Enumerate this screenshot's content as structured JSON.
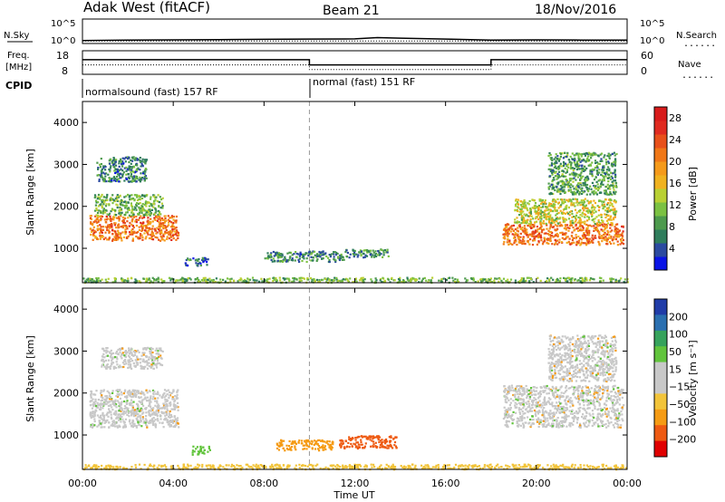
{
  "header": {
    "radar": "Adak West (fitACF)",
    "beam": "Beam 21",
    "date": "18/Nov/2016"
  },
  "panel_labels": {
    "nsky": "N.Sky",
    "nsearch": "N.Search",
    "freq": "Freq.",
    "freq_unit": "[MHz]",
    "nave": "Nave",
    "cpid": "CPID",
    "dotted": "......"
  },
  "cpid_segments": [
    {
      "label": "normalsound (fast) 157 RF",
      "start_hour": 0,
      "end_hour": 10
    },
    {
      "label": "normal (fast) 151 RF",
      "start_hour": 10,
      "end_hour": 24
    }
  ],
  "colors": {
    "power": [
      "#0a14e6",
      "#2b4aa0",
      "#2f7d5c",
      "#4d9a4d",
      "#7bc142",
      "#b9d033",
      "#f0b21f",
      "#f59a1a",
      "#f07717",
      "#e8501a",
      "#e02a20",
      "#d81b1b"
    ],
    "velocity": [
      "#e00000",
      "#ee5a12",
      "#f59b14",
      "#f2c43a",
      "#c8c8c8",
      "#c8c8c8",
      "#61c43c",
      "#36a35c",
      "#2a6fb0",
      "#203ca8"
    ]
  },
  "chart_data": [
    {
      "type": "line",
      "name": "noise-search panel",
      "y_labels_left": [
        "10^5",
        "10^0"
      ],
      "y_labels_right": [
        "10^5",
        "10^0"
      ],
      "x_range_hours": [
        0,
        24
      ],
      "description_series": [
        {
          "name": "N.Sky",
          "style": "solid",
          "points_hour_log": [
            [
              0,
              0.6
            ],
            [
              2,
              0.7
            ],
            [
              4,
              0.75
            ],
            [
              6,
              0.8
            ],
            [
              8,
              0.85
            ],
            [
              10,
              0.9
            ],
            [
              12,
              0.95
            ],
            [
              13,
              1.2
            ],
            [
              14,
              1.1
            ],
            [
              16,
              0.9
            ],
            [
              18,
              0.7
            ],
            [
              20,
              0.75
            ],
            [
              22,
              0.7
            ],
            [
              24,
              0.7
            ]
          ]
        },
        {
          "name": "N.Search",
          "style": "dotted",
          "points_hour_log": [
            [
              0,
              0.5
            ],
            [
              24,
              0.5
            ]
          ]
        }
      ]
    },
    {
      "type": "line",
      "name": "frequency-nave panel",
      "y_ticks_left": [
        8,
        18
      ],
      "y_ticks_right": [
        0,
        60
      ],
      "series": [
        {
          "name": "Freq.",
          "unit": "MHz",
          "style": "solid",
          "points_hour_value": [
            [
              0,
              14.2
            ],
            [
              10,
              14.2
            ],
            [
              10,
              12.0
            ],
            [
              18,
              12.0
            ],
            [
              18,
              14.2
            ],
            [
              24,
              14.2
            ]
          ]
        },
        {
          "name": "Nave",
          "style": "dotted",
          "points_hour_value": [
            [
              0,
              12
            ],
            [
              10,
              12
            ],
            [
              10,
              10
            ],
            [
              18,
              10
            ],
            [
              18,
              12
            ],
            [
              24,
              12
            ]
          ]
        }
      ]
    },
    {
      "type": "heatmap",
      "name": "power",
      "xlabel": "",
      "ylabel": "Slant Range [km]",
      "x_range_hours": [
        0,
        24
      ],
      "ylim": [
        180,
        4500
      ],
      "y_ticks": [
        1000,
        2000,
        3000,
        4000
      ],
      "colorbar": {
        "label": "Power [dB]",
        "ticks": [
          4,
          8,
          12,
          16,
          20,
          24,
          28
        ],
        "range": [
          0,
          30
        ]
      },
      "scatter_regions": [
        {
          "hours": [
            0.3,
            4.2
          ],
          "range_km": [
            1200,
            1800
          ],
          "value": 22
        },
        {
          "hours": [
            0.5,
            3.5
          ],
          "range_km": [
            1800,
            2300
          ],
          "value": 10
        },
        {
          "hours": [
            0.6,
            2.8
          ],
          "range_km": [
            2600,
            3200
          ],
          "value": 6
        },
        {
          "hours": [
            4.5,
            5.5
          ],
          "range_km": [
            600,
            800
          ],
          "value": 5
        },
        {
          "hours": [
            8.0,
            11.5
          ],
          "range_km": [
            700,
            950
          ],
          "value": 6
        },
        {
          "hours": [
            11.5,
            13.5
          ],
          "range_km": [
            800,
            1000
          ],
          "value": 7
        },
        {
          "hours": [
            18.5,
            23.8
          ],
          "range_km": [
            1100,
            1600
          ],
          "value": 22
        },
        {
          "hours": [
            19.0,
            23.5
          ],
          "range_km": [
            1600,
            2200
          ],
          "value": 14
        },
        {
          "hours": [
            20.5,
            23.5
          ],
          "range_km": [
            2300,
            3300
          ],
          "value": 8
        },
        {
          "hours": [
            0.0,
            24.0
          ],
          "range_km": [
            200,
            320
          ],
          "value": 10
        }
      ]
    },
    {
      "type": "heatmap",
      "name": "velocity",
      "xlabel": "Time UT",
      "ylabel": "Slant Range [km]",
      "x_ticks": [
        "00:00",
        "04:00",
        "08:00",
        "12:00",
        "16:00",
        "20:00",
        "00:00"
      ],
      "x_range_hours": [
        0,
        24
      ],
      "ylim": [
        180,
        4500
      ],
      "y_ticks": [
        1000,
        2000,
        3000,
        4000
      ],
      "colorbar": {
        "label": "Velocity [m s⁻¹]",
        "ticks": [
          "200",
          "100",
          "50",
          "15",
          "−15",
          "−50",
          "−100",
          "−200"
        ]
      },
      "scatter_regions": [
        {
          "hours": [
            0.3,
            4.2
          ],
          "range_km": [
            1200,
            2100
          ],
          "value": 0
        },
        {
          "hours": [
            0.8,
            3.5
          ],
          "range_km": [
            2600,
            3100
          ],
          "value": 0
        },
        {
          "hours": [
            4.8,
            5.6
          ],
          "range_km": [
            550,
            750
          ],
          "value": 70
        },
        {
          "hours": [
            8.5,
            11.0
          ],
          "range_km": [
            650,
            900
          ],
          "value": -60
        },
        {
          "hours": [
            11.3,
            13.8
          ],
          "range_km": [
            700,
            1000
          ],
          "value": -80
        },
        {
          "hours": [
            18.5,
            23.8
          ],
          "range_km": [
            1200,
            2200
          ],
          "value": 0
        },
        {
          "hours": [
            20.5,
            23.5
          ],
          "range_km": [
            2300,
            3400
          ],
          "value": 0
        },
        {
          "hours": [
            0.0,
            24.0
          ],
          "range_km": [
            200,
            320
          ],
          "value": -20
        }
      ]
    }
  ],
  "axis": {
    "xlabel": "Time UT",
    "x_ticks": [
      "00:00",
      "04:00",
      "08:00",
      "12:00",
      "16:00",
      "20:00",
      "00:00"
    ],
    "ylabel": "Slant Range [km]",
    "y_ticks": [
      "1000",
      "2000",
      "3000",
      "4000"
    ]
  }
}
